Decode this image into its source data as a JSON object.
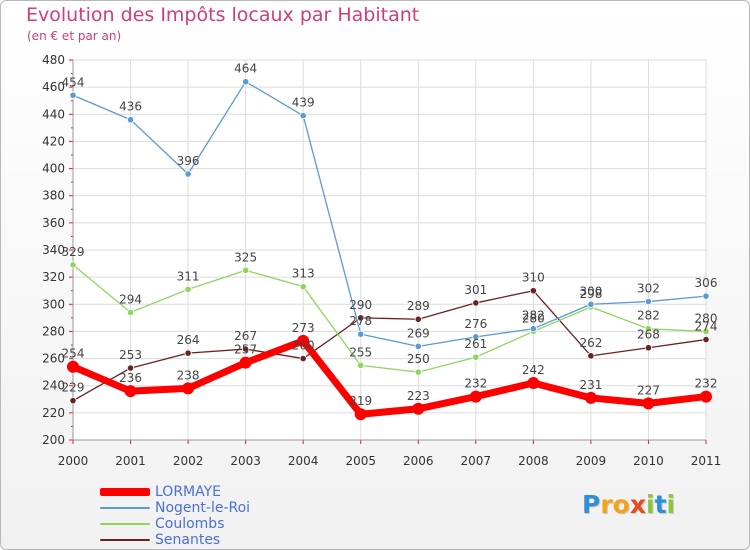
{
  "header": {
    "title": "Evolution des Impôts locaux par Habitant",
    "subtitle": "(en € et par an)"
  },
  "chart_data": {
    "type": "line",
    "title": "Evolution des Impôts locaux par Habitant",
    "subtitle": "(en € et par an)",
    "xlabel": "",
    "ylabel": "",
    "categories": [
      "2000",
      "2001",
      "2002",
      "2003",
      "2004",
      "2005",
      "2006",
      "2007",
      "2008",
      "2009",
      "2010",
      "2011"
    ],
    "ylim": [
      200,
      480
    ],
    "yticks": [
      200,
      220,
      240,
      260,
      280,
      300,
      320,
      340,
      360,
      380,
      400,
      420,
      440,
      460,
      480
    ],
    "grid": true,
    "legend_position": "bottom-left",
    "series": [
      {
        "name": "Senantes",
        "color": "#6e1f1f",
        "values": [
          229,
          253,
          264,
          267,
          260,
          290,
          289,
          301,
          310,
          262,
          268,
          274
        ]
      },
      {
        "name": "Coulombs",
        "color": "#8ed65a",
        "values": [
          329,
          294,
          311,
          325,
          313,
          255,
          250,
          261,
          280,
          298,
          282,
          280
        ]
      },
      {
        "name": "Nogent-le-Roi",
        "color": "#5b9bd5",
        "values": [
          454,
          436,
          396,
          464,
          439,
          278,
          269,
          276,
          282,
          300,
          302,
          306
        ]
      },
      {
        "name": "LORMAYE",
        "color": "#ff0000",
        "values": [
          254,
          236,
          238,
          257,
          273,
          219,
          223,
          232,
          242,
          231,
          227,
          232
        ]
      }
    ]
  },
  "legend": [
    {
      "name": "LORMAYE",
      "color": "#ff0000"
    },
    {
      "name": "Nogent-le-Roi",
      "color": "#5b9bd5"
    },
    {
      "name": "Coulombs",
      "color": "#8ed65a"
    },
    {
      "name": "Senantes",
      "color": "#6e1f1f"
    }
  ],
  "logo": {
    "letters": [
      "P",
      "r",
      "o",
      "x",
      "i",
      "t",
      "i"
    ],
    "colors": [
      "#2f8fd8",
      "#f4a21c",
      "#f4a21c",
      "#e94b1d",
      "#8cc63e",
      "#2f8fd8",
      "#8cc63e"
    ]
  }
}
